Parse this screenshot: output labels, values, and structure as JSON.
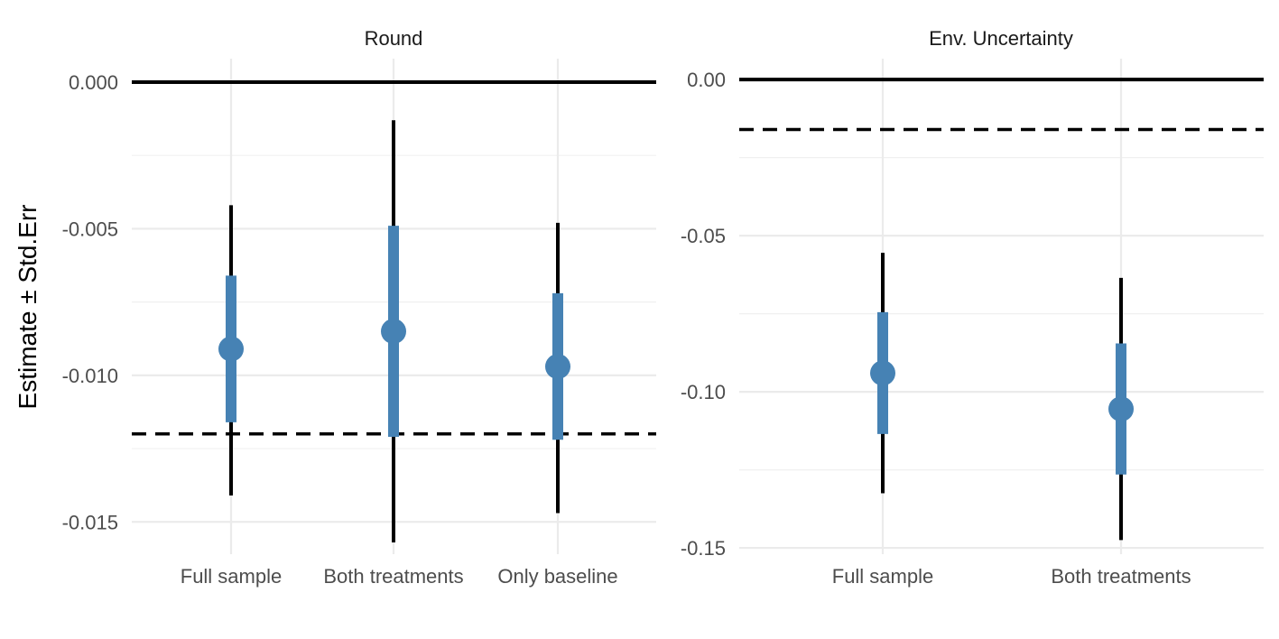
{
  "chart_data": [
    {
      "type": "scatter",
      "title": "Round",
      "ylabel": "Estimate ± Std.Err",
      "xlabel": "",
      "categories": [
        "Full sample",
        "Both treatments",
        "Only baseline"
      ],
      "estimates": [
        -0.0091,
        -0.0085,
        -0.0097
      ],
      "std_err": [
        -0.0066,
        -0.0049,
        -0.0072
      ],
      "std_err_low": [
        -0.0116,
        -0.0121,
        -0.0122
      ],
      "ci_high": [
        -0.0042,
        -0.0013,
        -0.0048
      ],
      "ci_low": [
        -0.0141,
        -0.0157,
        -0.0147
      ],
      "ylim": [
        -0.0161,
        0.0008
      ],
      "yticks": [
        0.0,
        -0.005,
        -0.01,
        -0.015
      ],
      "ytick_labels": [
        "0.000",
        "-0.005",
        "-0.010",
        "-0.015"
      ],
      "reference_line": 0.0,
      "dashed_line": -0.012,
      "grid": true
    },
    {
      "type": "scatter",
      "title": "Env. Uncertainty",
      "xlabel": "",
      "categories": [
        "Full sample",
        "Both treatments"
      ],
      "estimates": [
        -0.094,
        -0.1055
      ],
      "std_err": [
        -0.0745,
        -0.0845
      ],
      "std_err_low": [
        -0.1135,
        -0.1265
      ],
      "ci_high": [
        -0.0555,
        -0.0635
      ],
      "ci_low": [
        -0.1325,
        -0.1475
      ],
      "ylim": [
        -0.152,
        0.0067
      ],
      "yticks": [
        0.0,
        -0.05,
        -0.1,
        -0.15
      ],
      "ytick_labels": [
        "0.00",
        "-0.05",
        "-0.10",
        "-0.15"
      ],
      "reference_line": 0.0,
      "dashed_line": -0.016,
      "grid": true
    }
  ],
  "colors": {
    "point": "#4682B4",
    "whisker": "#000000",
    "reference": "#000000"
  }
}
